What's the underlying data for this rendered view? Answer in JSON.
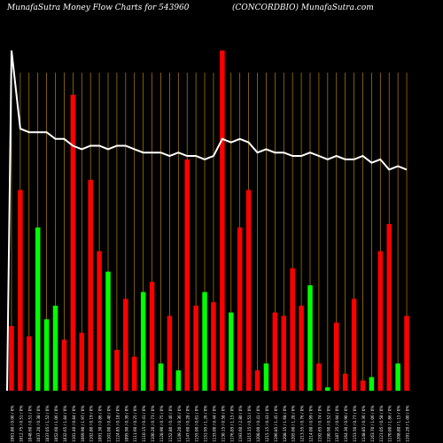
{
  "header": {
    "title_left": "MunafaSutra  Money Flow  Charts for 543960",
    "title_right": "(CONCORDBIO) MunafaSutra.com"
  },
  "colors": {
    "background": "#000000",
    "up": "#00ff00",
    "down": "#ff0000",
    "grid": "#b8860b",
    "line": "#ffffff",
    "label": "#ffffff"
  },
  "chart_data": {
    "type": "bar",
    "title": "MunafaSutra  Money Flow  Charts for 543960",
    "subtitle": "(CONCORDBIO) MunafaSutra.com",
    "ylim": [
      0,
      100
    ],
    "grid": true,
    "categories": [
      "1061.80 / 0.00 / 0%",
      "1012.75 / 0.51 / 0%",
      "1048.60 / 0.51 / 0%",
      "1037.20 / 0.38 / 0%",
      "1037.05 / 1.52 / 0%",
      "1052.60 / 1.06 / 0%",
      "1032.65 / 1.84 / 0%",
      "1101.40 / 0.84 / 0%",
      "1069.90 / 1.97 / 0%",
      "1102.80 / 0.19 / 0%",
      "1091.30 / 0.86 / 0%",
      "1101.00 / 0.40 / 0%",
      "1124.85 / 0.18 / 0%",
      "1095.90 / 0.39 / 0%",
      "1111.60 / 0.25 / 0%",
      "1110.15 / 0.41 / 0%",
      "1100.20 / 0.73 / 0%",
      "1128.90 / 0.75 / 0%",
      "1152.80 / 0.40 / 0%",
      "1149.20 / 0.36 / 0%",
      "1147.60 / 0.28 / 0%",
      "1155.00 / 0.61 / 0%",
      "1151.95 / 1.26 / 0%",
      "1133.00 / 0.44 / 0%",
      "1130.15 / 0.58 / 0%",
      "1176.85 / 1.15 / 0%",
      "1193.60 / 2.80 / 0%",
      "1215.15 / 0.51 / 0%",
      "1208.00 / 0.41 / 0%",
      "1215.15 / 0.43 / 0%",
      "1196.85 / 1.45 / 0%",
      "1208.35 / 1.68 / 0%",
      "1205.00 / 1.28 / 0%",
      "1213.55 / 0.76 / 0%",
      "1214.00 / 0.99 / 0%",
      "1192.65 / 0.74 / 0%",
      "1190.90 / 0.52 / 0%",
      "1187.35 / 0.94 / 0%",
      "1164.30 / 0.90 / 0%",
      "1153.50 / 0.77 / 0%",
      "1148.85 / 0.36 / 0%",
      "1163.70 / 1.06 / 0%",
      "1121.05 / 0.58 / 0%",
      "1170.00 / 1.86 / 0%",
      "1208.80 / 1.15 / 0%",
      "1191.20 / 1.00 / 0%"
    ],
    "values": [
      19,
      59,
      16,
      48,
      21,
      25,
      15,
      87,
      17,
      62,
      41,
      35,
      12,
      27,
      10,
      29,
      32,
      8,
      22,
      6,
      68,
      25,
      29,
      26,
      100,
      23,
      48,
      59,
      6,
      8,
      23,
      22,
      36,
      25,
      31,
      8,
      1,
      20,
      5,
      27,
      3,
      4,
      41,
      49,
      8,
      22
    ],
    "directions": [
      "down",
      "down",
      "down",
      "up",
      "up",
      "up",
      "down",
      "down",
      "down",
      "down",
      "down",
      "up",
      "down",
      "down",
      "down",
      "up",
      "down",
      "up",
      "down",
      "up",
      "down",
      "down",
      "up",
      "down",
      "down",
      "up",
      "down",
      "down",
      "down",
      "up",
      "down",
      "down",
      "down",
      "down",
      "up",
      "down",
      "up",
      "down",
      "down",
      "down",
      "down",
      "up",
      "down",
      "down",
      "up",
      "down"
    ],
    "money_flow_line": [
      100,
      77,
      76,
      76,
      76,
      74,
      74,
      72,
      71,
      72,
      72,
      71,
      72,
      72,
      71,
      70,
      70,
      70,
      69,
      70,
      69,
      69,
      68,
      69,
      74,
      73,
      74,
      73,
      70,
      71,
      70,
      70,
      69,
      69,
      70,
      69,
      68,
      69,
      68,
      68,
      69,
      67,
      68,
      65,
      66,
      65
    ]
  }
}
